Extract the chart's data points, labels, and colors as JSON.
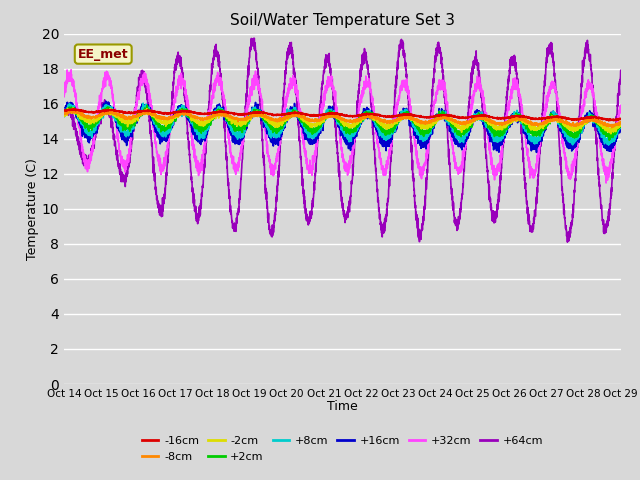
{
  "title": "Soil/Water Temperature Set 3",
  "xlabel": "Time",
  "ylabel": "Temperature (C)",
  "ylim": [
    0,
    20
  ],
  "yticks": [
    0,
    2,
    4,
    6,
    8,
    10,
    12,
    14,
    16,
    18,
    20
  ],
  "xlim": [
    0,
    360
  ],
  "background_color": "#d8d8d8",
  "plot_bg_color": "#d8d8d8",
  "annotation_text": "EE_met",
  "annotation_color": "#8B0000",
  "annotation_bg": "#f5f5c8",
  "series": [
    {
      "label": "-16cm",
      "color": "#dd0000",
      "linewidth": 1.2
    },
    {
      "label": "-8cm",
      "color": "#ff8800",
      "linewidth": 1.2
    },
    {
      "label": "-2cm",
      "color": "#dddd00",
      "linewidth": 1.2
    },
    {
      "label": "+2cm",
      "color": "#00cc00",
      "linewidth": 1.2
    },
    {
      "label": "+8cm",
      "color": "#00cccc",
      "linewidth": 1.2
    },
    {
      "label": "+16cm",
      "color": "#0000cc",
      "linewidth": 1.2
    },
    {
      "label": "+32cm",
      "color": "#ff44ff",
      "linewidth": 1.2
    },
    {
      "label": "+64cm",
      "color": "#9900bb",
      "linewidth": 1.2
    }
  ],
  "xtick_labels": [
    "Oct 14",
    "Oct 15",
    "Oct 16",
    "Oct 17",
    "Oct 18",
    "Oct 19",
    "Oct 20",
    "Oct 21",
    "Oct 22",
    "Oct 23",
    "Oct 24",
    "Oct 25",
    "Oct 26",
    "Oct 27",
    "Oct 28",
    "Oct 29"
  ],
  "xtick_positions": [
    0,
    24,
    48,
    72,
    96,
    120,
    144,
    168,
    192,
    216,
    240,
    264,
    288,
    312,
    336,
    360
  ]
}
